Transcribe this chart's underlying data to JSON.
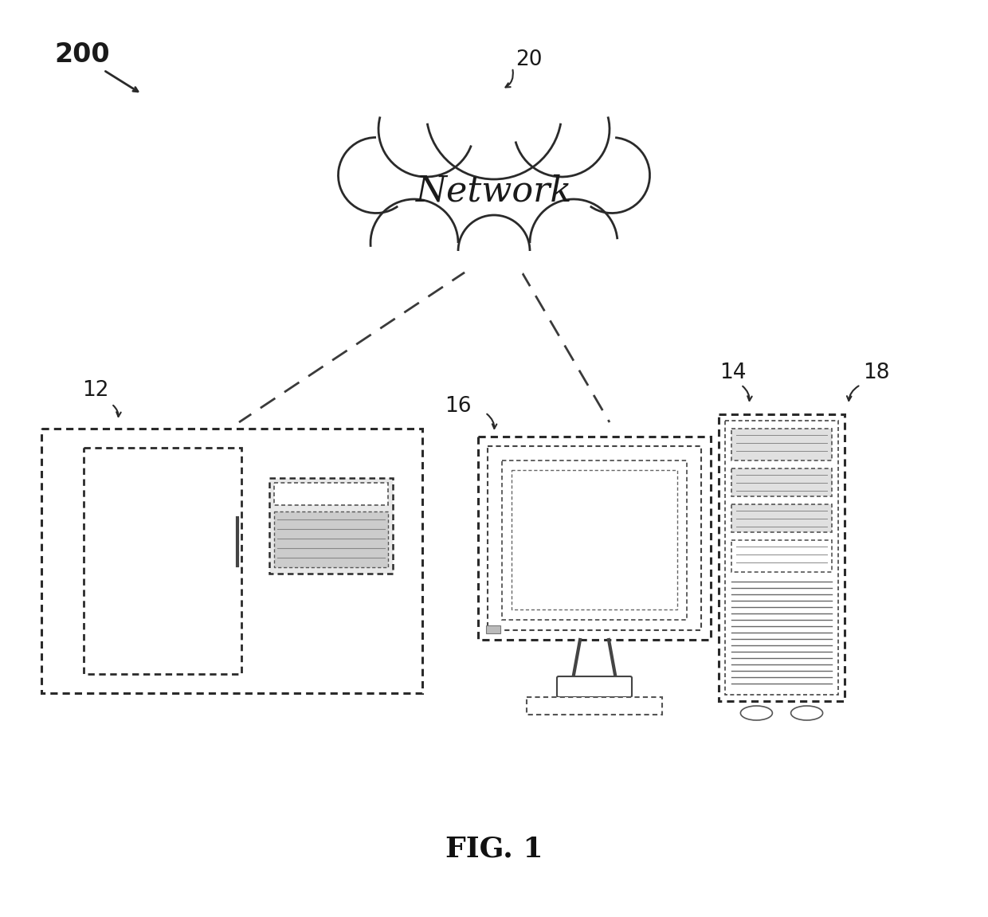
{
  "background_color": "#ffffff",
  "fig_label": "FIG. 1",
  "ref_200": "200",
  "ref_20": "20",
  "ref_12": "12",
  "ref_14": "14",
  "ref_16": "16",
  "ref_18": "18",
  "network_text": "Network",
  "label_fontsize": 19,
  "network_fontsize": 32,
  "figlabel_fontsize": 26,
  "line_color": "#2a2a2a",
  "dash_pattern": [
    8,
    5
  ]
}
